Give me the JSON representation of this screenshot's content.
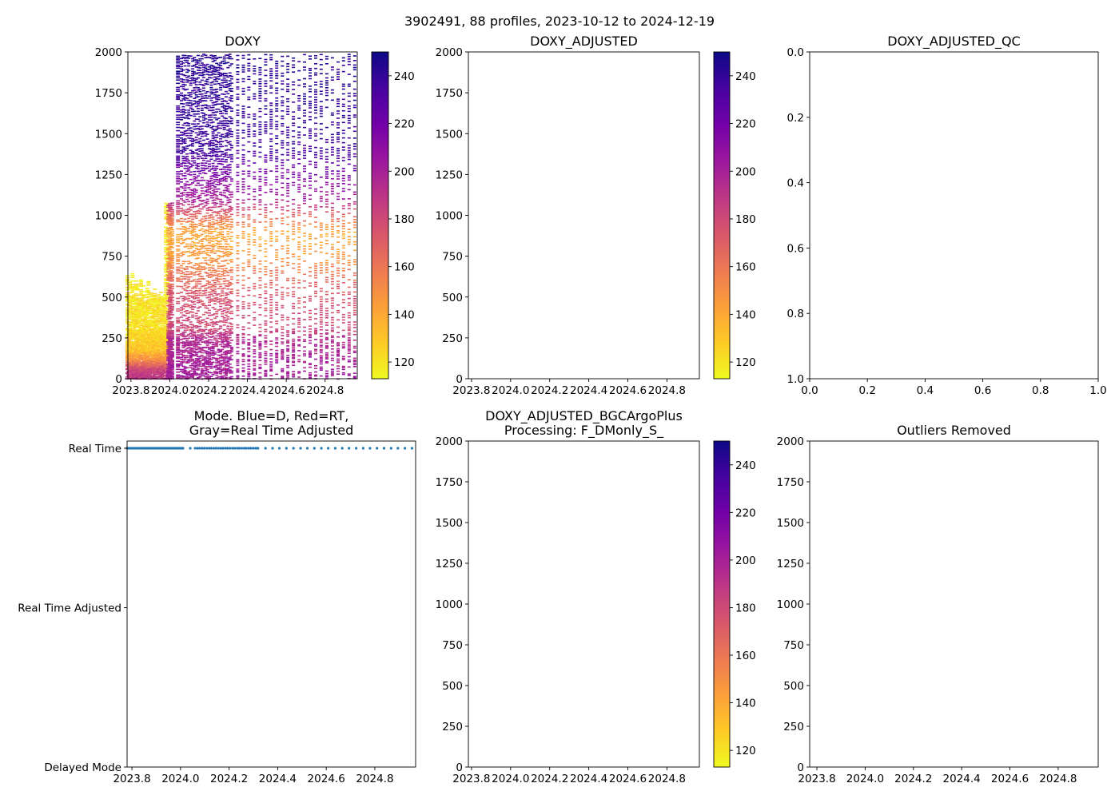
{
  "figure_title": "3902491, 88 profiles, 2023-10-12 to 2024-12-19",
  "chart_data": [
    {
      "panel": "doxy",
      "type": "heatmap",
      "title": [
        "DOXY"
      ],
      "xlim": [
        2023.784,
        2024.966
      ],
      "ylim": [
        2000,
        0
      ],
      "xticks": [
        2023.8,
        2024.0,
        2024.2,
        2024.4,
        2024.6,
        2024.8
      ],
      "xtick_labels": [
        "2023.8",
        "2024.0",
        "2024.2",
        "2024.4",
        "2024.6",
        "2024.8"
      ],
      "yticks": [
        0,
        250,
        500,
        750,
        1000,
        1250,
        1500,
        1750,
        2000
      ],
      "ytick_labels": [
        "0",
        "250",
        "500",
        "750",
        "1000",
        "1250",
        "1500",
        "1750",
        "2000"
      ],
      "colorbar": {
        "cmap": "plasma_r",
        "range": [
          113,
          250
        ],
        "ticks": [
          120,
          140,
          160,
          180,
          200,
          220,
          240
        ],
        "tick_labels": [
          "120",
          "140",
          "160",
          "180",
          "200",
          "220",
          "240"
        ]
      },
      "profile_times": [
        2023.78,
        2023.786,
        2023.793,
        2023.799,
        2023.806,
        2023.812,
        2023.818,
        2023.825,
        2023.831,
        2023.838,
        2023.844,
        2023.85,
        2023.857,
        2023.863,
        2023.87,
        2023.876,
        2023.882,
        2023.889,
        2023.895,
        2023.902,
        2023.908,
        2023.914,
        2023.921,
        2023.927,
        2023.934,
        2023.94,
        2023.946,
        2023.953,
        2023.959,
        2023.966,
        2023.972,
        2023.978,
        2023.985,
        2023.991,
        2023.998,
        2024.004,
        2024.01,
        2024.04,
        2024.06,
        2024.07,
        2024.079,
        2024.089,
        2024.098,
        2024.108,
        2024.118,
        2024.127,
        2024.137,
        2024.146,
        2024.156,
        2024.166,
        2024.175,
        2024.185,
        2024.194,
        2024.204,
        2024.214,
        2024.223,
        2024.233,
        2024.242,
        2024.252,
        2024.262,
        2024.271,
        2024.281,
        2024.29,
        2024.3,
        2024.31,
        2024.319,
        2024.35,
        2024.379,
        2024.407,
        2024.436,
        2024.465,
        2024.494,
        2024.522,
        2024.551,
        2024.58,
        2024.608,
        2024.637,
        2024.666,
        2024.694,
        2024.723,
        2024.752,
        2024.78,
        2024.809,
        2024.838,
        2024.867,
        2024.895,
        2024.924,
        2024.953
      ],
      "profile_max_depth": [
        640,
        520,
        600,
        480,
        650,
        560,
        500,
        620,
        590,
        470,
        540,
        610,
        500,
        580,
        520,
        470,
        560,
        600,
        490,
        530,
        470,
        510,
        560,
        480,
        500,
        520,
        470,
        540,
        500,
        480,
        520,
        1080,
        1080,
        1070,
        1080,
        1060,
        1080,
        1990,
        1990,
        1990,
        1990,
        1990,
        1990,
        1990,
        1990,
        1990,
        1990,
        1990,
        1990,
        1990,
        1990,
        1990,
        1990,
        1990,
        1990,
        1990,
        1990,
        1990,
        1990,
        1990,
        1990,
        1990,
        1990,
        1990,
        1990,
        1990,
        1990,
        1990,
        1990,
        1990,
        1990,
        1990,
        1990,
        1990,
        1990,
        1990,
        1990,
        1990,
        1990,
        1990,
        1990,
        1990,
        1990,
        1990,
        1990,
        1990,
        1990,
        1990
      ],
      "mean_profiles": {
        "early": [
          [
            0,
            190
          ],
          [
            60,
            182
          ],
          [
            120,
            150
          ],
          [
            180,
            130
          ],
          [
            300,
            122
          ],
          [
            650,
            117
          ]
        ],
        "late": [
          [
            0,
            202
          ],
          [
            100,
            200
          ],
          [
            250,
            195
          ],
          [
            300,
            182
          ],
          [
            500,
            176
          ],
          [
            650,
            160
          ],
          [
            750,
            146
          ],
          [
            900,
            140
          ],
          [
            1000,
            166
          ],
          [
            1100,
            200
          ],
          [
            1250,
            216
          ],
          [
            1400,
            236
          ],
          [
            2000,
            243
          ]
        ]
      }
    },
    {
      "panel": "doxy_adjusted",
      "type": "heatmap",
      "title": [
        "DOXY_ADJUSTED"
      ],
      "xlim": [
        2023.784,
        2024.966
      ],
      "ylim": [
        2000,
        0
      ],
      "xticks": [
        2023.8,
        2024.0,
        2024.2,
        2024.4,
        2024.6,
        2024.8
      ],
      "xtick_labels": [
        "2023.8",
        "2024.0",
        "2024.2",
        "2024.4",
        "2024.6",
        "2024.8"
      ],
      "yticks": [
        0,
        250,
        500,
        750,
        1000,
        1250,
        1500,
        1750,
        2000
      ],
      "ytick_labels": [
        "0",
        "250",
        "500",
        "750",
        "1000",
        "1250",
        "1500",
        "1750",
        "2000"
      ],
      "colorbar": {
        "cmap": "plasma_r",
        "range": [
          113,
          250
        ],
        "ticks": [
          120,
          140,
          160,
          180,
          200,
          220,
          240
        ],
        "tick_labels": [
          "120",
          "140",
          "160",
          "180",
          "200",
          "220",
          "240"
        ]
      }
    },
    {
      "panel": "doxy_adjusted_qc",
      "type": "scatter",
      "title": [
        "DOXY_ADJUSTED_QC"
      ],
      "xlim": [
        0,
        1
      ],
      "ylim": [
        0,
        1
      ],
      "xticks": [
        0,
        0.2,
        0.4,
        0.6,
        0.8,
        1.0
      ],
      "xtick_labels": [
        "0.0",
        "0.2",
        "0.4",
        "0.6",
        "0.8",
        "1.0"
      ],
      "yticks": [
        0,
        0.2,
        0.4,
        0.6,
        0.8,
        1.0
      ],
      "ytick_labels": [
        "0.0",
        "0.2",
        "0.4",
        "0.6",
        "0.8",
        "1.0"
      ]
    },
    {
      "panel": "mode",
      "type": "scatter",
      "title": [
        "Mode. Blue=D, Red=RT,",
        "Gray=Real Time Adjusted"
      ],
      "xlim": [
        2023.78,
        2024.968
      ],
      "ylim": [
        -0.045,
        2
      ],
      "xticks": [
        2023.8,
        2024.0,
        2024.2,
        2024.4,
        2024.6,
        2024.8
      ],
      "xtick_labels": [
        "2023.8",
        "2024.0",
        "2024.2",
        "2024.4",
        "2024.6",
        "2024.8"
      ],
      "yticks": [
        0,
        1,
        2
      ],
      "ytick_labels": [
        "Real Time",
        "Real Time Adjusted",
        "Delayed Mode"
      ],
      "point_color": "#1f77b4",
      "x_source": "profile_times",
      "y_constant": 0
    },
    {
      "panel": "doxy_adjusted_bgcargoplus",
      "type": "heatmap",
      "title": [
        "DOXY_ADJUSTED_BGCArgoPlus",
        "Processing: F_DMonly_S_"
      ],
      "xlim": [
        2023.784,
        2024.966
      ],
      "ylim": [
        2000,
        0
      ],
      "xticks": [
        2023.8,
        2024.0,
        2024.2,
        2024.4,
        2024.6,
        2024.8
      ],
      "xtick_labels": [
        "2023.8",
        "2024.0",
        "2024.2",
        "2024.4",
        "2024.6",
        "2024.8"
      ],
      "yticks": [
        0,
        250,
        500,
        750,
        1000,
        1250,
        1500,
        1750,
        2000
      ],
      "ytick_labels": [
        "0",
        "250",
        "500",
        "750",
        "1000",
        "1250",
        "1500",
        "1750",
        "2000"
      ],
      "colorbar": {
        "cmap": "plasma_r",
        "range": [
          113,
          250
        ],
        "ticks": [
          120,
          140,
          160,
          180,
          200,
          220,
          240
        ],
        "tick_labels": [
          "120",
          "140",
          "160",
          "180",
          "200",
          "220",
          "240"
        ]
      }
    },
    {
      "panel": "outliers_removed",
      "type": "scatter",
      "title": [
        "Outliers Removed"
      ],
      "xlim": [
        2023.77,
        2024.966
      ],
      "ylim": [
        2000,
        0
      ],
      "xticks": [
        2023.8,
        2024.0,
        2024.2,
        2024.4,
        2024.6,
        2024.8
      ],
      "xtick_labels": [
        "2023.8",
        "2024.0",
        "2024.2",
        "2024.4",
        "2024.6",
        "2024.8"
      ],
      "yticks": [
        0,
        250,
        500,
        750,
        1000,
        1250,
        1500,
        1750,
        2000
      ],
      "ytick_labels": [
        "0",
        "250",
        "500",
        "750",
        "1000",
        "1250",
        "1500",
        "1750",
        "2000"
      ]
    }
  ]
}
